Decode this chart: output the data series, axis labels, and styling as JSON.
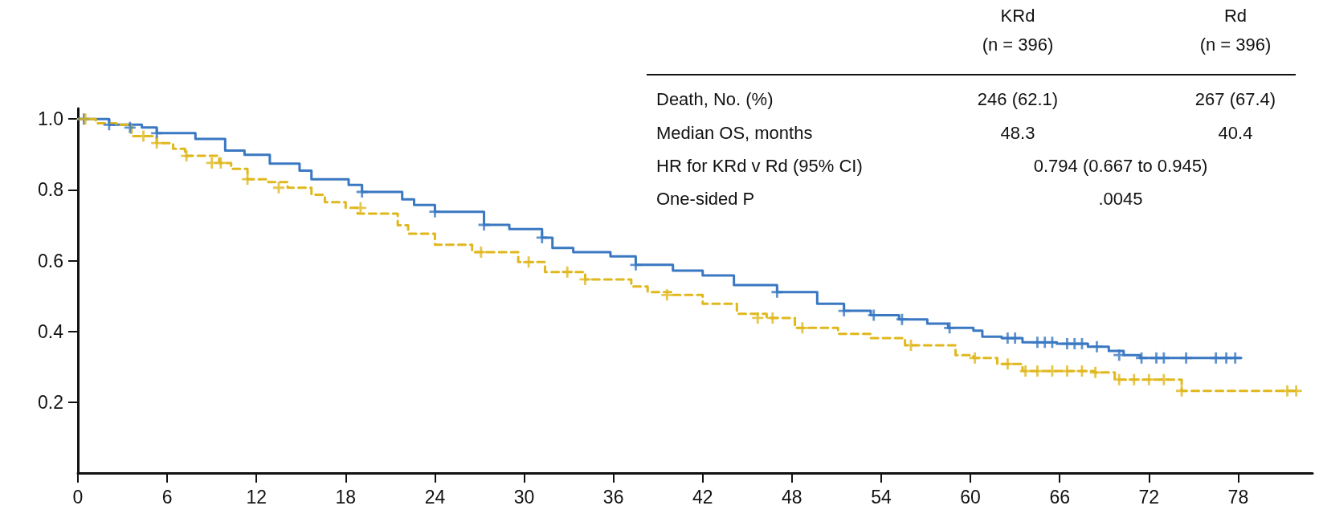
{
  "chart_data": {
    "type": "step",
    "annotations": [
      "KRd",
      "(n = 396)",
      "Rd",
      "(n = 396)",
      "Death, No. (%)",
      "246 (62.1)",
      "267 (67.4)",
      "Median OS, months",
      "48.3",
      "40.4",
      "HR for KRd v Rd  (95% CI)",
      "0.794 (0.667 to 0.945)",
      "One-sided P",
      ".0045"
    ],
    "xlim": [
      0,
      83
    ],
    "xticks": [
      0,
      6,
      12,
      18,
      24,
      30,
      36,
      42,
      48,
      54,
      60,
      66,
      72,
      78
    ],
    "ylim": [
      0,
      1.03
    ],
    "yticks": [
      {
        "value": 0.2,
        "label": "0.2"
      },
      {
        "value": 0.4,
        "label": "0.4"
      },
      {
        "value": 0.6,
        "label": "0.6"
      },
      {
        "value": 0.8,
        "label": "0.8"
      },
      {
        "value": 1,
        "label": "1.0"
      }
    ],
    "grid": false,
    "series": [
      {
        "color": "#3a78c2",
        "line_style": "solid",
        "marker": "none",
        "x": [
          0,
          2.1,
          4.3,
          5.3,
          7.9,
          9.9,
          11.2,
          12.9,
          14.9,
          15.7,
          18.2,
          19.1,
          21.8,
          22.6,
          24.0,
          27.3,
          29.0,
          31.2,
          31.9,
          33.3,
          35.8,
          37.5,
          40.0,
          42.0,
          44.1,
          47.0,
          49.7,
          51.5,
          53.3,
          55.2,
          57.1,
          58.5,
          60.2,
          60.8,
          62.1,
          63.5,
          65.8,
          67.9,
          69.3,
          70.3,
          71.4,
          78.2
        ],
        "values": [
          1.0,
          0.984,
          0.976,
          0.96,
          0.944,
          0.911,
          0.899,
          0.874,
          0.854,
          0.83,
          0.814,
          0.794,
          0.773,
          0.757,
          0.738,
          0.701,
          0.689,
          0.665,
          0.636,
          0.624,
          0.612,
          0.588,
          0.572,
          0.558,
          0.531,
          0.511,
          0.478,
          0.458,
          0.446,
          0.434,
          0.422,
          0.41,
          0.402,
          0.385,
          0.381,
          0.369,
          0.365,
          0.357,
          0.345,
          0.333,
          0.325,
          0.325
        ]
      },
      {
        "color": "#e0b81e",
        "line_style": "dashed",
        "marker": "none",
        "x": [
          0,
          1.2,
          2.6,
          3.6,
          5.3,
          6.4,
          7.2,
          9.5,
          10.3,
          11.4,
          12.8,
          14.1,
          15.7,
          16.6,
          18.0,
          18.8,
          21.5,
          22.2,
          24.0,
          26.5,
          29.6,
          31.4,
          34.1,
          37.2,
          38.3,
          40.0,
          42.0,
          44.3,
          46.3,
          48.2,
          51.1,
          53.3,
          55.6,
          59.0,
          60.2,
          61.8,
          63.5,
          68.3,
          69.7,
          74.1,
          74.2,
          81.9
        ],
        "values": [
          1.0,
          0.988,
          0.984,
          0.952,
          0.932,
          0.916,
          0.896,
          0.876,
          0.859,
          0.83,
          0.822,
          0.806,
          0.786,
          0.765,
          0.749,
          0.733,
          0.7,
          0.676,
          0.645,
          0.624,
          0.596,
          0.568,
          0.547,
          0.527,
          0.511,
          0.503,
          0.478,
          0.45,
          0.438,
          0.41,
          0.393,
          0.381,
          0.361,
          0.333,
          0.325,
          0.308,
          0.288,
          0.284,
          0.264,
          0.264,
          0.232,
          0.232
        ]
      },
      {
        "type": "scatter",
        "color": "#3a78c2",
        "marker": "cross",
        "x": [
          0.4,
          2.1,
          3.5,
          5.3,
          19.1,
          24.0,
          27.3,
          31.2,
          37.5,
          47.0,
          51.5,
          53.5,
          55.4,
          58.6,
          62.5,
          63.0,
          64.5,
          65.0,
          65.5,
          66.5,
          67.0,
          67.5,
          68.5,
          70.0,
          71.5,
          72.5,
          73.0,
          74.5,
          76.5,
          77.2,
          77.8
        ],
        "values": [
          1.0,
          0.984,
          0.976,
          0.96,
          0.794,
          0.738,
          0.701,
          0.665,
          0.588,
          0.511,
          0.458,
          0.446,
          0.434,
          0.41,
          0.381,
          0.381,
          0.369,
          0.369,
          0.369,
          0.365,
          0.365,
          0.365,
          0.357,
          0.333,
          0.325,
          0.325,
          0.325,
          0.325,
          0.325,
          0.325,
          0.325
        ]
      },
      {
        "type": "scatter",
        "color": "#e0b81e",
        "marker": "cross",
        "x": [
          0.5,
          4.4,
          5.3,
          7.3,
          9.0,
          9.6,
          11.4,
          13.5,
          19.0,
          27.1,
          30.3,
          32.9,
          34.1,
          39.6,
          45.7,
          46.7,
          48.7,
          56.0,
          60.3,
          62.5,
          63.7,
          64.5,
          65.5,
          66.5,
          67.5,
          68.4,
          70.0,
          71.0,
          72.0,
          73.0,
          74.2,
          81.3,
          81.9
        ],
        "values": [
          1.0,
          0.952,
          0.932,
          0.896,
          0.876,
          0.876,
          0.83,
          0.806,
          0.749,
          0.624,
          0.596,
          0.568,
          0.547,
          0.503,
          0.438,
          0.438,
          0.41,
          0.361,
          0.325,
          0.308,
          0.288,
          0.288,
          0.288,
          0.288,
          0.288,
          0.284,
          0.264,
          0.264,
          0.264,
          0.264,
          0.232,
          0.232,
          0.232
        ]
      }
    ]
  }
}
